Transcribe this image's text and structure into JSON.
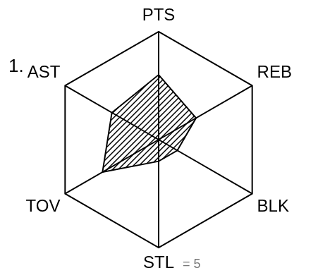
{
  "chart_data": {
    "type": "radar",
    "title": "1.",
    "categories": [
      "PTS",
      "REB",
      "BLK",
      "STL",
      "TOV",
      "AST"
    ],
    "values": [
      3,
      2,
      1,
      1,
      3,
      2.5
    ],
    "color": "#000000",
    "ylim": [
      0,
      5
    ],
    "yticks": [
      0,
      5
    ],
    "grid": true,
    "tick_labels": false,
    "annotation": "= 5"
  }
}
